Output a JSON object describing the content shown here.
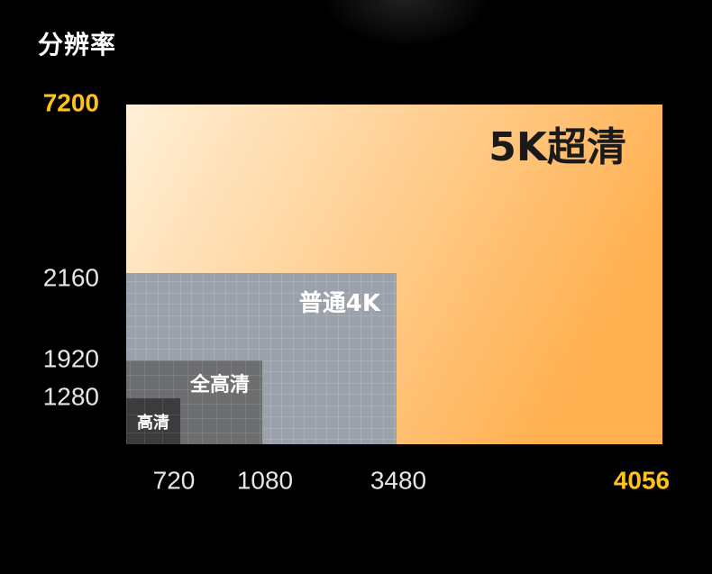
{
  "title": "分辨率",
  "colors": {
    "highlight": "#ffc21a",
    "tick": "#e6e6e6",
    "uhd_start": "#fff0d8",
    "uhd_end": "#ffb050",
    "k4": "#9aa1aa",
    "fhd": "#6d6e70",
    "hd": "#3c3c3e"
  },
  "chart_data": {
    "type": "nested-area",
    "title": "分辨率",
    "x_ticks": [
      {
        "value": 720,
        "label": "720",
        "highlight": false
      },
      {
        "value": 1080,
        "label": "1080",
        "highlight": false
      },
      {
        "value": 3480,
        "label": "3480",
        "highlight": false
      },
      {
        "value": 4056,
        "label": "4056",
        "highlight": true
      }
    ],
    "y_ticks": [
      {
        "value": 1280,
        "label": "1280",
        "highlight": false
      },
      {
        "value": 1920,
        "label": "1920",
        "highlight": false
      },
      {
        "value": 2160,
        "label": "2160",
        "highlight": false
      },
      {
        "value": 7200,
        "label": "7200",
        "highlight": true
      }
    ],
    "tiers": [
      {
        "name": "5K超清",
        "x": 4056,
        "y": 7200
      },
      {
        "name": "普通4K",
        "x": 3480,
        "y": 2160
      },
      {
        "name": "全高清",
        "x": 1080,
        "y": 1920
      },
      {
        "name": "高清",
        "x": 720,
        "y": 1280
      }
    ]
  }
}
